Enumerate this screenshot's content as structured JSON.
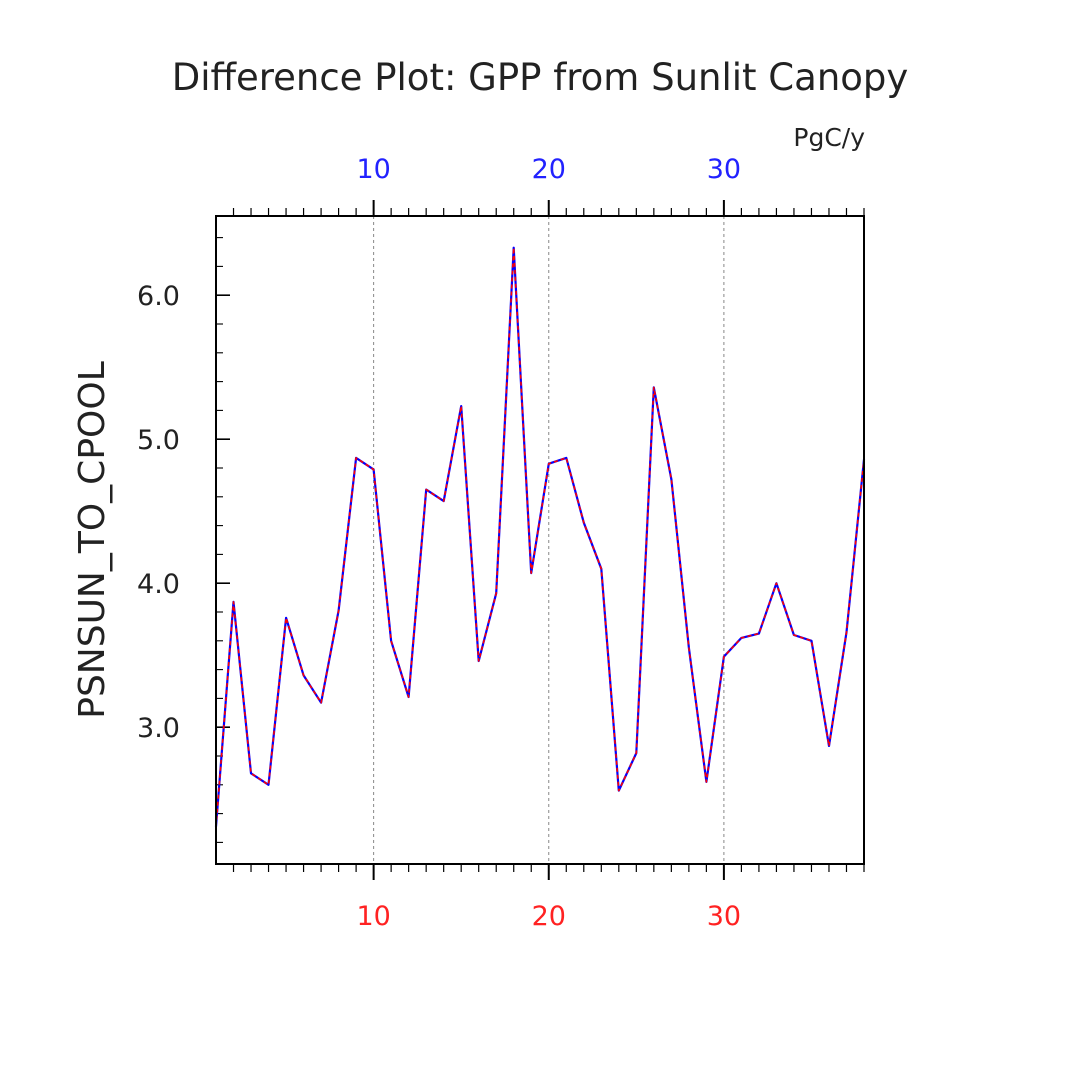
{
  "chart_data": {
    "type": "line",
    "title": "Difference Plot: GPP from Sunlit Canopy",
    "units": "PgC/y",
    "ylabel": "PSNSUN_TO_CPOOL",
    "xlabel": "",
    "xlim": [
      1,
      38
    ],
    "ylim": [
      2.05,
      6.55
    ],
    "x_major_ticks": [
      10,
      20,
      30
    ],
    "x_tick_labels_top": [
      "10",
      "20",
      "30"
    ],
    "x_tick_labels_bottom": [
      "10",
      "20",
      "30"
    ],
    "y_major_ticks": [
      3.0,
      4.0,
      5.0,
      6.0
    ],
    "y_tick_labels": [
      "3.0",
      "4.0",
      "5.0",
      "6.0"
    ],
    "grid": "vertical dashed at major x ticks",
    "x": [
      1,
      2,
      3,
      4,
      5,
      6,
      7,
      8,
      9,
      10,
      11,
      12,
      13,
      14,
      15,
      16,
      17,
      18,
      19,
      20,
      21,
      22,
      23,
      24,
      25,
      26,
      27,
      28,
      29,
      30,
      31,
      32,
      33,
      34,
      35,
      36,
      37,
      38
    ],
    "series": [
      {
        "color": "#0000ff",
        "values": [
          2.31,
          3.87,
          2.68,
          2.6,
          3.76,
          3.36,
          3.17,
          3.81,
          4.87,
          4.79,
          3.6,
          3.21,
          4.65,
          4.57,
          5.23,
          3.46,
          3.93,
          6.33,
          4.07,
          4.83,
          4.87,
          4.42,
          4.1,
          2.56,
          2.82,
          5.36,
          4.72,
          3.55,
          2.62,
          3.49,
          3.62,
          3.65,
          4.0,
          3.64,
          3.6,
          2.87,
          3.66,
          4.86
        ]
      },
      {
        "color": "#ff0000",
        "values": [
          2.31,
          3.87,
          2.68,
          2.6,
          3.76,
          3.36,
          3.17,
          3.81,
          4.87,
          4.79,
          3.6,
          3.21,
          4.65,
          4.57,
          5.23,
          3.46,
          3.93,
          6.33,
          4.07,
          4.83,
          4.87,
          4.42,
          4.1,
          2.56,
          2.82,
          5.36,
          4.72,
          3.55,
          2.62,
          3.49,
          3.62,
          3.65,
          4.0,
          3.64,
          3.6,
          2.87,
          3.66,
          4.86
        ]
      }
    ],
    "colors": {
      "top_axis_labels": "#2222ff",
      "bottom_axis_labels": "#ff2222",
      "frame": "#000000",
      "grid": "#888888"
    }
  }
}
